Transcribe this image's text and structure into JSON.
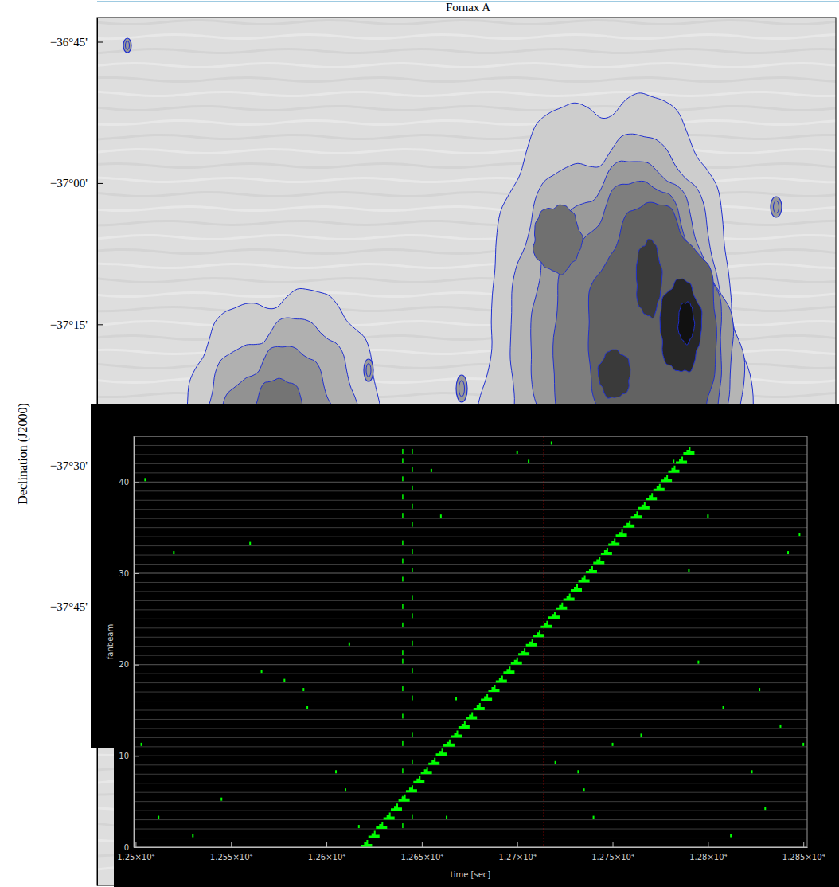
{
  "chart_data": [
    {
      "type": "image",
      "title": "Fornax A",
      "y_label": "Declination (J2000)",
      "ylim": [
        -36.707,
        -38.243
      ],
      "yticks": [
        {
          "value": -36.75,
          "label": "−36°45'"
        },
        {
          "value": -37.0,
          "label": "−37°00'"
        },
        {
          "value": -37.25,
          "label": "−37°15'"
        },
        {
          "value": -37.5,
          "label": "−37°30'"
        },
        {
          "value": -37.75,
          "label": "−37°45'"
        }
      ],
      "tick_labels": "y"
    },
    {
      "type": "scatter",
      "x_label": "time [sec]",
      "y_label": "fanbeam",
      "xlim": [
        12499,
        12852
      ],
      "ylim": [
        0,
        45
      ],
      "xticks": [
        {
          "value": 12500,
          "label": "1.25×10⁴"
        },
        {
          "value": 12550,
          "label": "1.255×10⁴"
        },
        {
          "value": 12600,
          "label": "1.26×10⁴"
        },
        {
          "value": 12650,
          "label": "1.265×10⁴"
        },
        {
          "value": 12700,
          "label": "1.27×10⁴"
        },
        {
          "value": 12750,
          "label": "1.275×10⁴"
        },
        {
          "value": 12800,
          "label": "1.28×10⁴"
        },
        {
          "value": 12850,
          "label": "1.285×10⁴"
        }
      ],
      "yticks": [
        0,
        10,
        20,
        30,
        40
      ],
      "grid": true,
      "series": [
        {
          "color": "#00ff00",
          "marker": "bar",
          "x": [
            12621.0,
            12624.9,
            12628.9,
            12632.8,
            12636.7,
            12640.7,
            12644.6,
            12648.5,
            12652.4,
            12656.4,
            12660.3,
            12664.2,
            12668.2,
            12672.1,
            12676.0,
            12680.0,
            12683.9,
            12687.8,
            12691.7,
            12695.7,
            12699.6,
            12703.5,
            12707.5,
            12711.4,
            12715.3,
            12719.3,
            12723.2,
            12727.1,
            12731.0,
            12735.0,
            12738.9,
            12742.8,
            12746.8,
            12750.7,
            12754.6,
            12758.6,
            12762.5,
            12766.4,
            12770.3,
            12774.3,
            12778.2,
            12782.1,
            12786.1,
            12790.0
          ],
          "values": [
            0,
            1,
            2,
            3,
            4,
            5,
            6,
            7,
            8,
            9,
            10,
            11,
            12,
            13,
            14,
            15,
            16,
            17,
            18,
            19,
            20,
            21,
            22,
            23,
            24,
            25,
            26,
            27,
            28,
            29,
            30,
            31,
            32,
            33,
            34,
            35,
            36,
            37,
            38,
            39,
            40,
            41,
            42,
            43
          ]
        },
        {
          "color": "#00ff00",
          "marker": "tick",
          "x": [
            12640,
            12640,
            12640,
            12640,
            12640,
            12640,
            12640,
            12640,
            12640,
            12640,
            12640,
            12640,
            12640,
            12640,
            12640,
            12640,
            12640,
            12640,
            12645,
            12645,
            12645,
            12645,
            12645,
            12645,
            12645,
            12645,
            12645,
            12645,
            12645,
            12645,
            12645,
            12645,
            12645,
            12645
          ],
          "values": [
            2,
            5,
            8,
            11,
            14,
            17,
            20,
            21,
            24,
            26,
            29,
            31,
            33,
            36,
            38,
            40,
            42,
            43,
            3,
            6,
            9,
            12,
            16,
            19,
            22,
            25,
            27,
            30,
            32,
            35,
            37,
            39,
            41,
            43
          ]
        },
        {
          "color": "#00ff00",
          "marker": "dot",
          "x": [
            12505,
            12503,
            12512,
            12520,
            12530,
            12545,
            12560,
            12566,
            12578,
            12588,
            12590,
            12605,
            12610,
            12612,
            12617,
            12655,
            12660,
            12663,
            12668,
            12700,
            12706,
            12718,
            12720,
            12732,
            12735,
            12740,
            12750,
            12765,
            12782,
            12790,
            12795,
            12800,
            12808,
            12812,
            12823,
            12827,
            12830,
            12838,
            12842,
            12848,
            12850
          ],
          "values": [
            40,
            11,
            3,
            32,
            1,
            5,
            33,
            19,
            18,
            17,
            15,
            8,
            6,
            22,
            2,
            41,
            36,
            3,
            16,
            43,
            42,
            44,
            9,
            8,
            6,
            3,
            11,
            12,
            42,
            30,
            20,
            36,
            15,
            1,
            8,
            17,
            4,
            13,
            32,
            34,
            11
          ]
        },
        {
          "type": "vline",
          "color": "#ff0000",
          "line_style": "dotted",
          "x": [
            12714
          ]
        }
      ]
    }
  ]
}
